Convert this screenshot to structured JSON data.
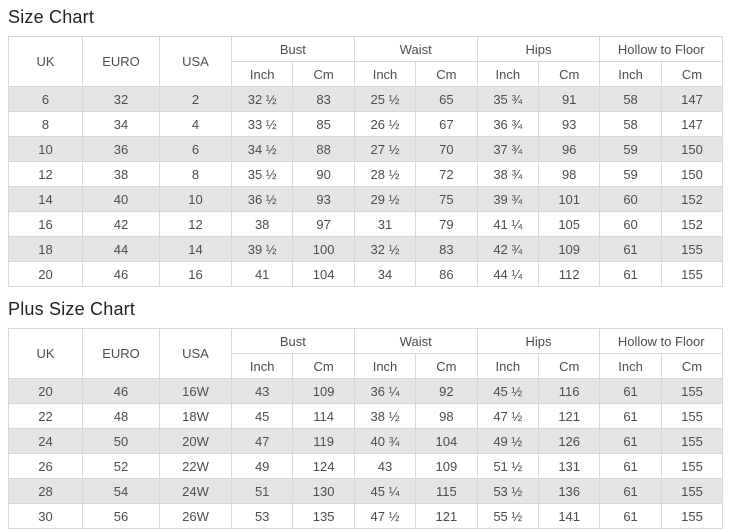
{
  "colors": {
    "row_alternate": "#e5e5e5",
    "cell_border": "#d8d8d8",
    "table_text": "#4d4d4d",
    "title_text": "#222222",
    "background": "#ffffff"
  },
  "tables": [
    {
      "title": "Size Chart",
      "columns": [
        "UK",
        "EURO",
        "USA"
      ],
      "groups": [
        "Bust",
        "Waist",
        "Hips",
        "Hollow to Floor"
      ],
      "subheaders": [
        "Inch",
        "Cm"
      ],
      "rows": [
        [
          "6",
          "32",
          "2",
          "32 ½",
          "83",
          "25 ½",
          "65",
          "35 ¾",
          "91",
          "58",
          "147"
        ],
        [
          "8",
          "34",
          "4",
          "33 ½",
          "85",
          "26 ½",
          "67",
          "36 ¾",
          "93",
          "58",
          "147"
        ],
        [
          "10",
          "36",
          "6",
          "34 ½",
          "88",
          "27 ½",
          "70",
          "37 ¾",
          "96",
          "59",
          "150"
        ],
        [
          "12",
          "38",
          "8",
          "35 ½",
          "90",
          "28 ½",
          "72",
          "38 ¾",
          "98",
          "59",
          "150"
        ],
        [
          "14",
          "40",
          "10",
          "36 ½",
          "93",
          "29 ½",
          "75",
          "39 ¾",
          "101",
          "60",
          "152"
        ],
        [
          "16",
          "42",
          "12",
          "38",
          "97",
          "31",
          "79",
          "41 ¼",
          "105",
          "60",
          "152"
        ],
        [
          "18",
          "44",
          "14",
          "39 ½",
          "100",
          "32 ½",
          "83",
          "42 ¾",
          "109",
          "61",
          "155"
        ],
        [
          "20",
          "46",
          "16",
          "41",
          "104",
          "34",
          "86",
          "44 ¼",
          "112",
          "61",
          "155"
        ]
      ]
    },
    {
      "title": "Plus Size Chart",
      "columns": [
        "UK",
        "EURO",
        "USA"
      ],
      "groups": [
        "Bust",
        "Waist",
        "Hips",
        "Hollow to Floor"
      ],
      "subheaders": [
        "Inch",
        "Cm"
      ],
      "rows": [
        [
          "20",
          "46",
          "16W",
          "43",
          "109",
          "36 ¼",
          "92",
          "45 ½",
          "116",
          "61",
          "155"
        ],
        [
          "22",
          "48",
          "18W",
          "45",
          "114",
          "38 ½",
          "98",
          "47 ½",
          "121",
          "61",
          "155"
        ],
        [
          "24",
          "50",
          "20W",
          "47",
          "119",
          "40 ¾",
          "104",
          "49 ½",
          "126",
          "61",
          "155"
        ],
        [
          "26",
          "52",
          "22W",
          "49",
          "124",
          "43",
          "109",
          "51 ½",
          "131",
          "61",
          "155"
        ],
        [
          "28",
          "54",
          "24W",
          "51",
          "130",
          "45 ¼",
          "115",
          "53 ½",
          "136",
          "61",
          "155"
        ],
        [
          "30",
          "56",
          "26W",
          "53",
          "135",
          "47 ½",
          "121",
          "55 ½",
          "141",
          "61",
          "155"
        ]
      ]
    }
  ]
}
